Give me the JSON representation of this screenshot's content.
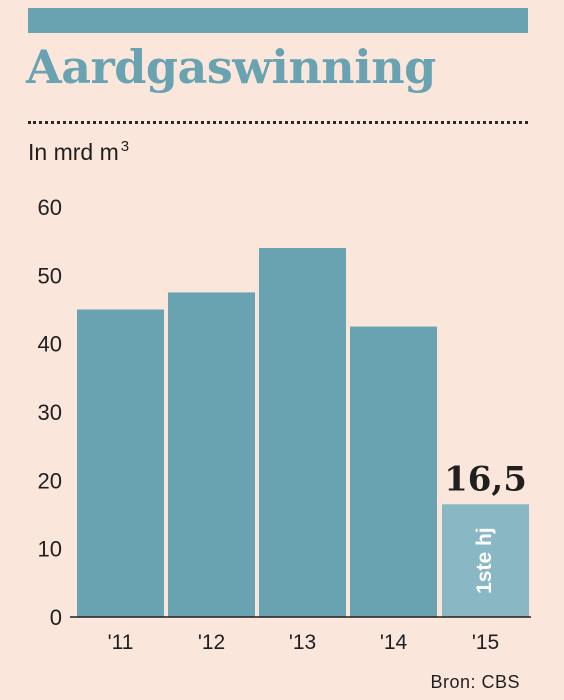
{
  "header": {
    "title": "Aardgaswinning",
    "subtitle": "In mrd m",
    "subtitle_sup": "3"
  },
  "footer": {
    "source": "Bron: CBS"
  },
  "colors": {
    "background": "#fbe6dc",
    "bar": "#69a3b2",
    "bar_highlight": "#8ab7c4",
    "title": "#69a3b2",
    "band": "#69a3b2",
    "text": "#1f1f1f"
  },
  "chart_data": {
    "type": "bar",
    "title": "Aardgaswinning",
    "ylabel": "In mrd m3",
    "xlabel": "",
    "categories": [
      "'11",
      "'12",
      "'13",
      "'14",
      "'15"
    ],
    "values": [
      45,
      47.5,
      54,
      42.5,
      16.5
    ],
    "ylim": [
      0,
      60
    ],
    "yticks": [
      0,
      10,
      20,
      30,
      40,
      50,
      60
    ],
    "grid": false,
    "highlight_index": 4,
    "highlight_value_label": "16,5",
    "highlight_bar_label": "1ste hj"
  }
}
